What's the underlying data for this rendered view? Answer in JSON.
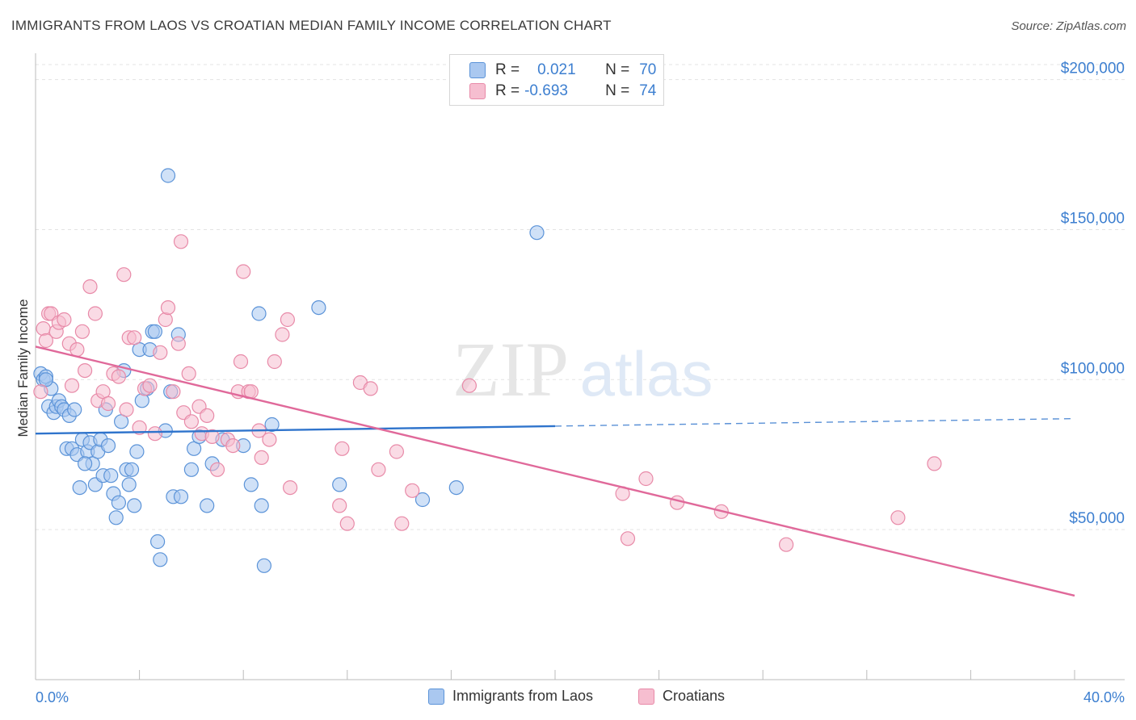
{
  "title": "IMMIGRANTS FROM LAOS VS CROATIAN MEDIAN FAMILY INCOME CORRELATION CHART",
  "source": "Source: ZipAtlas.com",
  "watermark": {
    "zip": "ZIP",
    "atlas": "atlas"
  },
  "stats": {
    "laos": {
      "r_label": "R =",
      "r_value": "0.021",
      "n_label": "N =",
      "n_value": "70"
    },
    "croatians": {
      "r_label": "R =",
      "r_value": "-0.693",
      "n_label": "N =",
      "n_value": "74"
    }
  },
  "legend": {
    "laos": "Immigrants from Laos",
    "croatians": "Croatians"
  },
  "colors": {
    "laos_fill": "#aac8f0",
    "laos_stroke": "#5b93d8",
    "laos_line": "#2f74cc",
    "croat_fill": "#f6bed0",
    "croat_stroke": "#e88aa8",
    "croat_line": "#e0699a",
    "axis_text": "#3d7fd0",
    "grid": "#e3e3e3"
  },
  "chart_data": {
    "type": "scatter",
    "title": "IMMIGRANTS FROM LAOS VS CROATIAN MEDIAN FAMILY INCOME CORRELATION CHART",
    "xlabel": "",
    "ylabel": "Median Family Income",
    "xlim": [
      0,
      40
    ],
    "ylim": [
      0,
      205000
    ],
    "x_tick_labels": {
      "min": "0.0%",
      "max": "40.0%"
    },
    "y_ticks": [
      {
        "value": 50000,
        "label": "$50,000"
      },
      {
        "value": 100000,
        "label": "$100,000"
      },
      {
        "value": 150000,
        "label": "$150,000"
      },
      {
        "value": 200000,
        "label": "$200,000"
      }
    ],
    "series": [
      {
        "name": "Immigrants from Laos",
        "trend": {
          "x0": 0,
          "y0": 82000,
          "x1": 20,
          "y1": 84500,
          "x_dash_end": 40,
          "y_dash_end": 87000
        },
        "points": [
          [
            0.2,
            102000
          ],
          [
            0.3,
            100000
          ],
          [
            0.4,
            101000
          ],
          [
            0.5,
            91000
          ],
          [
            0.6,
            97000
          ],
          [
            0.7,
            89000
          ],
          [
            0.8,
            91000
          ],
          [
            0.9,
            93000
          ],
          [
            1.0,
            91000
          ],
          [
            1.1,
            90000
          ],
          [
            1.3,
            88000
          ],
          [
            1.5,
            90000
          ],
          [
            1.2,
            77000
          ],
          [
            1.4,
            77000
          ],
          [
            1.6,
            75000
          ],
          [
            1.7,
            64000
          ],
          [
            1.8,
            80000
          ],
          [
            2.0,
            76000
          ],
          [
            2.1,
            79000
          ],
          [
            2.2,
            72000
          ],
          [
            2.3,
            65000
          ],
          [
            2.4,
            76000
          ],
          [
            2.5,
            80000
          ],
          [
            2.6,
            68000
          ],
          [
            2.7,
            90000
          ],
          [
            2.8,
            78000
          ],
          [
            2.9,
            68000
          ],
          [
            3.0,
            62000
          ],
          [
            3.1,
            54000
          ],
          [
            3.2,
            59000
          ],
          [
            3.3,
            86000
          ],
          [
            3.4,
            103000
          ],
          [
            3.5,
            70000
          ],
          [
            3.6,
            65000
          ],
          [
            3.7,
            70000
          ],
          [
            3.8,
            58000
          ],
          [
            4.0,
            110000
          ],
          [
            4.1,
            93000
          ],
          [
            4.3,
            97000
          ],
          [
            4.4,
            110000
          ],
          [
            4.5,
            116000
          ],
          [
            4.6,
            116000
          ],
          [
            4.7,
            46000
          ],
          [
            4.8,
            40000
          ],
          [
            5.0,
            83000
          ],
          [
            5.1,
            168000
          ],
          [
            5.2,
            96000
          ],
          [
            5.3,
            61000
          ],
          [
            5.5,
            115000
          ],
          [
            5.6,
            61000
          ],
          [
            6.0,
            70000
          ],
          [
            6.1,
            77000
          ],
          [
            6.3,
            81000
          ],
          [
            6.6,
            58000
          ],
          [
            6.8,
            72000
          ],
          [
            7.2,
            80000
          ],
          [
            8.0,
            78000
          ],
          [
            8.3,
            65000
          ],
          [
            8.7,
            58000
          ],
          [
            8.6,
            122000
          ],
          [
            8.8,
            38000
          ],
          [
            9.1,
            85000
          ],
          [
            10.9,
            124000
          ],
          [
            11.7,
            65000
          ],
          [
            14.9,
            60000
          ],
          [
            16.2,
            64000
          ],
          [
            19.3,
            149000
          ],
          [
            0.4,
            100000
          ],
          [
            1.9,
            72000
          ],
          [
            3.9,
            76000
          ]
        ]
      },
      {
        "name": "Croatians",
        "trend": {
          "x0": 0,
          "y0": 111000,
          "x1": 40,
          "y1": 28000
        },
        "points": [
          [
            0.2,
            96000
          ],
          [
            0.3,
            117000
          ],
          [
            0.5,
            122000
          ],
          [
            0.6,
            122000
          ],
          [
            0.8,
            116000
          ],
          [
            0.9,
            119000
          ],
          [
            1.1,
            120000
          ],
          [
            1.3,
            112000
          ],
          [
            1.4,
            98000
          ],
          [
            1.6,
            110000
          ],
          [
            1.8,
            116000
          ],
          [
            1.9,
            103000
          ],
          [
            2.1,
            131000
          ],
          [
            2.3,
            122000
          ],
          [
            2.4,
            93000
          ],
          [
            2.6,
            96000
          ],
          [
            2.8,
            92000
          ],
          [
            3.0,
            102000
          ],
          [
            3.2,
            101000
          ],
          [
            3.4,
            135000
          ],
          [
            3.5,
            90000
          ],
          [
            3.6,
            114000
          ],
          [
            3.8,
            114000
          ],
          [
            4.0,
            84000
          ],
          [
            4.2,
            97000
          ],
          [
            4.4,
            98000
          ],
          [
            4.6,
            82000
          ],
          [
            4.8,
            109000
          ],
          [
            5.0,
            120000
          ],
          [
            5.1,
            124000
          ],
          [
            5.3,
            96000
          ],
          [
            5.5,
            112000
          ],
          [
            5.6,
            146000
          ],
          [
            5.7,
            89000
          ],
          [
            5.9,
            102000
          ],
          [
            6.0,
            86000
          ],
          [
            6.3,
            91000
          ],
          [
            6.4,
            82000
          ],
          [
            6.6,
            88000
          ],
          [
            6.8,
            81000
          ],
          [
            7.0,
            70000
          ],
          [
            7.4,
            80000
          ],
          [
            7.6,
            78000
          ],
          [
            7.8,
            96000
          ],
          [
            7.9,
            106000
          ],
          [
            8.0,
            136000
          ],
          [
            8.2,
            96000
          ],
          [
            8.3,
            96000
          ],
          [
            8.6,
            83000
          ],
          [
            8.7,
            74000
          ],
          [
            9.0,
            80000
          ],
          [
            9.2,
            106000
          ],
          [
            9.5,
            115000
          ],
          [
            9.7,
            120000
          ],
          [
            9.8,
            64000
          ],
          [
            11.8,
            77000
          ],
          [
            11.7,
            58000
          ],
          [
            12.0,
            52000
          ],
          [
            12.5,
            99000
          ],
          [
            12.9,
            97000
          ],
          [
            13.2,
            70000
          ],
          [
            14.1,
            52000
          ],
          [
            13.9,
            76000
          ],
          [
            14.5,
            63000
          ],
          [
            16.7,
            98000
          ],
          [
            22.6,
            62000
          ],
          [
            22.8,
            47000
          ],
          [
            23.5,
            67000
          ],
          [
            24.7,
            59000
          ],
          [
            26.4,
            56000
          ],
          [
            28.9,
            45000
          ],
          [
            33.2,
            54000
          ],
          [
            34.6,
            72000
          ],
          [
            0.4,
            113000
          ]
        ]
      }
    ]
  }
}
